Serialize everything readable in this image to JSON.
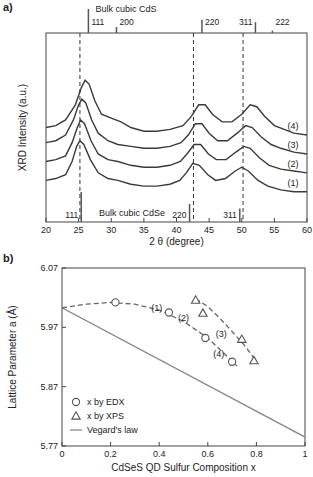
{
  "chart_data": [
    {
      "type": "line",
      "panel_label": "a)",
      "xlabel": "2 θ (degree)",
      "ylabel": "XRD Intensity (a.u.)",
      "xlim": [
        20,
        60
      ],
      "xticks": [
        20,
        25,
        30,
        35,
        40,
        45,
        50,
        55,
        60
      ],
      "ylim": [
        0,
        100
      ],
      "tick_labels": "x",
      "series": [
        {
          "name": "(1)",
          "color": "#3a3a3a",
          "x": [
            20,
            21.5,
            23,
            24,
            24.7,
            25.2,
            25.8,
            26.8,
            28,
            29.5,
            31,
            33,
            35,
            37,
            39,
            40.5,
            41.5,
            42.5,
            43.5,
            44.8,
            46,
            47.5,
            49,
            50,
            51,
            52.5,
            54,
            56,
            58,
            60
          ],
          "values": [
            22,
            23,
            25,
            32,
            40,
            43,
            41,
            33,
            26,
            23,
            22,
            20,
            19,
            19,
            20,
            22,
            26,
            31,
            30,
            25,
            22,
            23,
            27,
            29,
            27,
            22,
            19,
            17,
            16,
            16
          ]
        },
        {
          "name": "(2)",
          "color": "#3a3a3a",
          "x": [
            20,
            21.5,
            23,
            24,
            24.8,
            25.3,
            25.9,
            26.9,
            28,
            29.5,
            31,
            33,
            35,
            37,
            39,
            40.6,
            41.6,
            42.7,
            43.7,
            44.9,
            46.1,
            47.6,
            49.1,
            50.3,
            51.3,
            52.7,
            54.2,
            56,
            58,
            60
          ],
          "values": [
            32,
            33,
            35,
            42,
            50,
            54,
            52,
            43,
            36,
            33,
            32,
            30,
            29,
            29,
            30,
            32,
            36,
            41,
            41,
            36,
            33,
            33,
            37,
            40,
            39,
            34,
            30,
            28,
            27,
            26
          ]
        },
        {
          "name": "(3)",
          "color": "#3a3a3a",
          "x": [
            20,
            21.5,
            23,
            24.2,
            25,
            25.5,
            26.1,
            27,
            28,
            29.5,
            31,
            33,
            35,
            37,
            39,
            40.7,
            41.8,
            42.9,
            43.9,
            45,
            46.3,
            47.8,
            49.3,
            50.6,
            51.6,
            53,
            54.5,
            56,
            58,
            60
          ],
          "values": [
            42,
            43,
            46,
            54,
            62,
            65,
            63,
            54,
            47,
            43,
            41,
            40,
            39,
            39,
            40,
            42,
            46,
            52,
            52,
            47,
            43,
            43,
            47,
            51,
            50,
            45,
            41,
            39,
            37,
            36
          ]
        },
        {
          "name": "(4)",
          "color": "#3a3a3a",
          "x": [
            20,
            21.5,
            23,
            24.5,
            25.4,
            26,
            26.6,
            27.5,
            28.5,
            30,
            31.5,
            33,
            35,
            37,
            39,
            41,
            42.3,
            43.4,
            44.4,
            45.5,
            47,
            48.5,
            50,
            51.3,
            52.3,
            53.5,
            55,
            56.5,
            58,
            60
          ],
          "values": [
            50,
            51,
            54,
            62,
            71,
            75,
            73,
            64,
            57,
            55,
            53,
            50,
            48,
            48,
            49,
            51,
            56,
            62,
            62,
            57,
            53,
            53,
            57,
            62,
            61,
            56,
            51,
            49,
            47,
            46
          ]
        }
      ],
      "vlines": [
        25.2,
        42.6,
        50.2
      ],
      "references": [
        {
          "name": "Bulk cubic CdS",
          "color": "#555555",
          "x": [
            26.5,
            30.8,
            43.9,
            52.1,
            54.7
          ],
          "values": [
            100,
            25,
            55,
            45,
            10
          ],
          "labels": [
            "111",
            "200",
            "220",
            "311",
            "222"
          ]
        },
        {
          "name": "Bulk cubic CdSe",
          "color": "#555555",
          "x": [
            25.4,
            42.0,
            49.7
          ],
          "values": [
            100,
            60,
            45
          ],
          "labels": [
            "111",
            "220",
            "311"
          ]
        }
      ]
    },
    {
      "type": "scatter",
      "panel_label": "b)",
      "xlabel": "CdSeS QD Sulfur Composition x",
      "ylabel": "Lattice Parameter a (Å)",
      "xlim": [
        0,
        1
      ],
      "xticks": [
        0,
        0.2,
        0.4,
        0.6,
        0.8,
        1
      ],
      "ylim": [
        5.77,
        6.07
      ],
      "yticks": [
        5.77,
        5.87,
        5.97,
        6.07
      ],
      "legend": "lower left",
      "series": [
        {
          "name": "x by EDX",
          "marker": "circle",
          "color": "#555555",
          "x": [
            0.22,
            0.44,
            0.59,
            0.7
          ],
          "values": [
            6.012,
            5.995,
            5.952,
            5.912
          ]
        },
        {
          "name": "x by XPS",
          "marker": "triangle",
          "color": "#555555",
          "x": [
            0.55,
            0.58,
            0.74,
            0.79
          ],
          "values": [
            6.016,
            5.994,
            5.95,
            5.914
          ]
        },
        {
          "name": "Vegard's law",
          "type": "line",
          "line_style": "solid",
          "color": "#888888",
          "x": [
            0,
            1
          ],
          "values": [
            6.003,
            5.785
          ]
        },
        {
          "type": "line",
          "line_style": "dashed",
          "color": "#666666",
          "x": [
            0,
            0.1,
            0.2,
            0.3,
            0.4,
            0.5,
            0.6,
            0.7,
            0.72
          ],
          "values": [
            6.003,
            6.009,
            6.012,
            6.009,
            5.999,
            5.98,
            5.952,
            5.913,
            5.905
          ]
        },
        {
          "type": "line",
          "line_style": "dashed",
          "color": "#666666",
          "x": [
            0.55,
            0.6,
            0.65,
            0.7,
            0.75,
            0.8
          ],
          "values": [
            6.018,
            6.005,
            5.985,
            5.963,
            5.94,
            5.913
          ]
        }
      ],
      "annotations": [
        {
          "text": "(1)",
          "x": 0.39,
          "y": 6.003
        },
        {
          "text": "(2)",
          "x": 0.5,
          "y": 5.985
        },
        {
          "text": "(3)",
          "x": 0.655,
          "y": 5.958
        },
        {
          "text": "(4)",
          "x": 0.645,
          "y": 5.925
        }
      ]
    }
  ]
}
